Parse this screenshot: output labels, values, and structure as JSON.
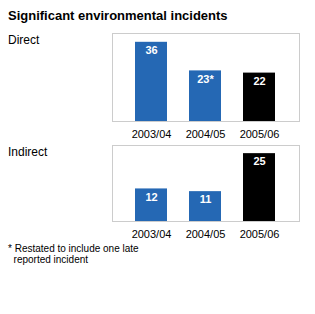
{
  "title": "Significant environmental incidents",
  "chart_data": [
    {
      "type": "bar",
      "title": "Direct",
      "categories": [
        "2003/04",
        "2004/05",
        "2005/06"
      ],
      "values": [
        36,
        23,
        22
      ],
      "value_labels": [
        "36",
        "23*",
        "22"
      ],
      "colors": [
        "#2568b4",
        "#2568b4",
        "#000000"
      ],
      "ylim": [
        0,
        40
      ],
      "yticks": [],
      "data_labels": true,
      "tick_labels": "x",
      "grid": false
    },
    {
      "type": "bar",
      "title": "Indirect",
      "categories": [
        "2003/04",
        "2004/05",
        "2005/06"
      ],
      "values": [
        12,
        11,
        25
      ],
      "colors": [
        "#2568b4",
        "#2568b4",
        "#000000"
      ],
      "ylim": [
        0,
        28
      ],
      "yticks": [],
      "data_labels": true,
      "tick_labels": "x",
      "grid": false,
      "annotations": [
        "* Restated to include one late\n  reported incident"
      ]
    }
  ]
}
